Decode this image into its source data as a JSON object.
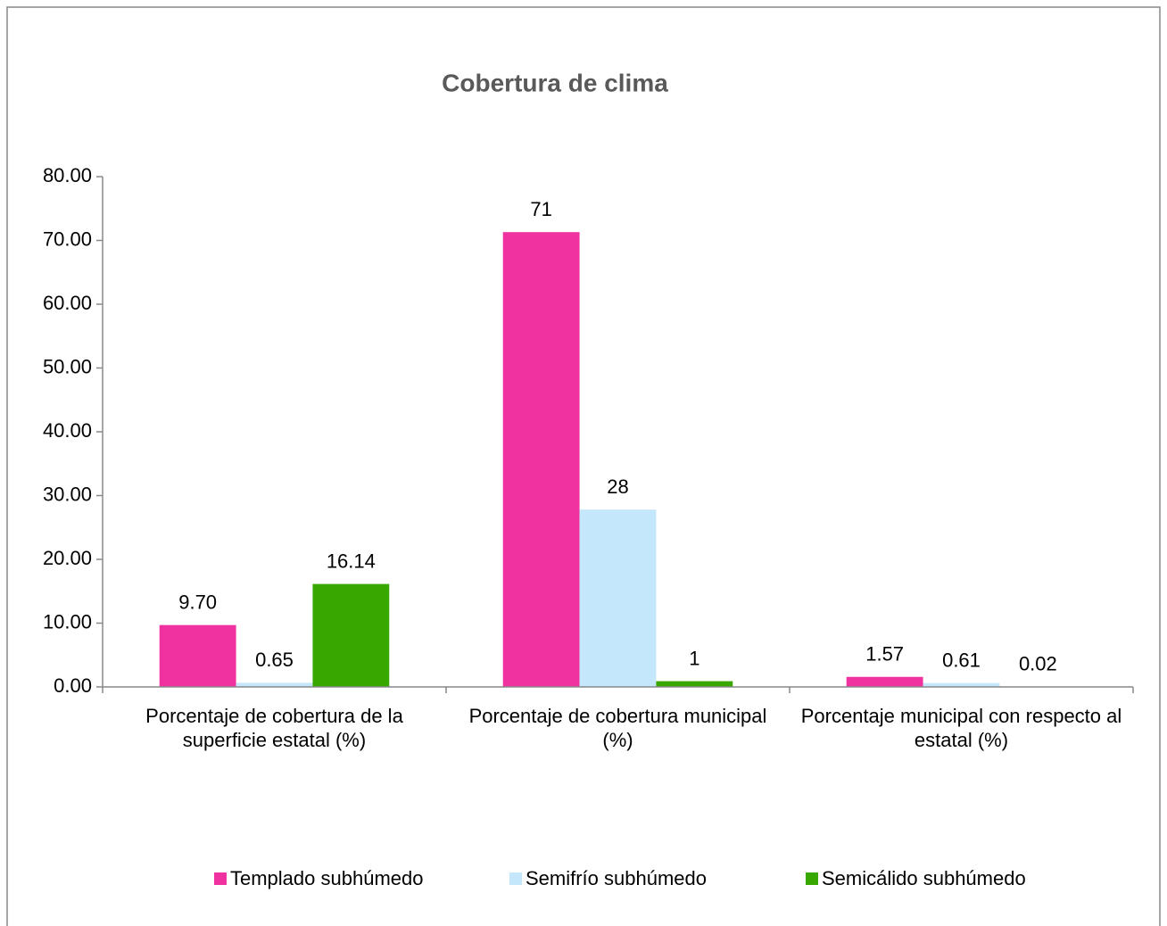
{
  "chart_data": {
    "type": "bar",
    "title": "Cobertura de clima",
    "categories": [
      "Porcentaje de cobertura de la superficie estatal (%)",
      "Porcentaje de cobertura municipal (%)",
      "Porcentaje municipal con respecto al  estatal (%)"
    ],
    "series": [
      {
        "name": "Templado subhúmedo",
        "color": "#f032a0",
        "values": [
          9.7,
          71.3,
          1.57
        ],
        "value_labels": [
          "9.70",
          "71",
          "1.57"
        ]
      },
      {
        "name": "Semifrío subhúmedo",
        "color": "#c5e7fb",
        "values": [
          0.65,
          27.8,
          0.61
        ],
        "value_labels": [
          "0.65",
          "28",
          "0.61"
        ]
      },
      {
        "name": "Semicálido subhúmedo",
        "color": "#38a800",
        "values": [
          16.14,
          0.9,
          0.02
        ],
        "value_labels": [
          "16.14",
          "1",
          "0.02"
        ]
      }
    ],
    "ylim": [
      0,
      80
    ],
    "yticks": [
      {
        "value": 0,
        "label": "0.00"
      },
      {
        "value": 10,
        "label": "10.00"
      },
      {
        "value": 20,
        "label": "20.00"
      },
      {
        "value": 30,
        "label": "30.00"
      },
      {
        "value": 40,
        "label": "40.00"
      },
      {
        "value": 50,
        "label": "50.00"
      },
      {
        "value": 60,
        "label": "60.00"
      },
      {
        "value": 70,
        "label": "70.00"
      },
      {
        "value": 80,
        "label": "80.00"
      }
    ],
    "grid": false,
    "legend": "bottom"
  }
}
